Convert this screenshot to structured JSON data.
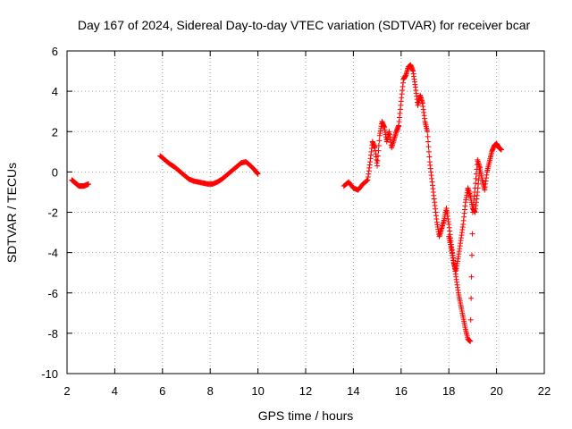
{
  "chart_data": {
    "type": "scatter",
    "title": "Day 167 of 2024, Sidereal Day-to-day VTEC variation (SDTVAR) for receiver bcar",
    "xlabel": "GPS time / hours",
    "ylabel": "SDTVAR / TECUs",
    "xlim": [
      2,
      22
    ],
    "ylim": [
      -10,
      6
    ],
    "xticks": [
      2,
      4,
      6,
      8,
      10,
      12,
      14,
      16,
      18,
      20,
      22
    ],
    "yticks": [
      -10,
      -8,
      -6,
      -4,
      -2,
      0,
      2,
      4,
      6
    ],
    "xtick_labels": [
      "2",
      "4",
      "6",
      "8",
      "10",
      "12",
      "14",
      "16",
      "18",
      "20",
      "22"
    ],
    "ytick_labels": [
      "-10",
      "-8",
      "-6",
      "-4",
      "-2",
      "0",
      "2",
      "4",
      "6"
    ],
    "grid": true,
    "marker": "plus",
    "color": "#ff0000",
    "series": [
      {
        "name": "segment-1",
        "x": [
          2.2,
          2.3,
          2.4,
          2.5,
          2.6,
          2.7,
          2.8,
          2.9
        ],
        "y": [
          -0.4,
          -0.5,
          -0.6,
          -0.7,
          -0.7,
          -0.7,
          -0.65,
          -0.6
        ]
      },
      {
        "name": "segment-2",
        "x": [
          5.9,
          6.1,
          6.3,
          6.5,
          6.7,
          6.9,
          7.1,
          7.3,
          7.5,
          7.7,
          7.9,
          8.1,
          8.3,
          8.5,
          8.7,
          8.9,
          9.1,
          9.3,
          9.5,
          9.7,
          9.9,
          10.0
        ],
        "y": [
          0.8,
          0.6,
          0.4,
          0.25,
          0.05,
          -0.15,
          -0.35,
          -0.45,
          -0.5,
          -0.55,
          -0.6,
          -0.6,
          -0.5,
          -0.35,
          -0.15,
          0.05,
          0.25,
          0.45,
          0.5,
          0.3,
          0.05,
          -0.1
        ]
      },
      {
        "name": "segment-3",
        "x": [
          13.6,
          13.8,
          14.0,
          14.2,
          14.4,
          14.6,
          14.7,
          14.8,
          14.9,
          15.0,
          15.1,
          15.2,
          15.3,
          15.4,
          15.5,
          15.6,
          15.7,
          15.8,
          15.9,
          16.0,
          16.1,
          16.2,
          16.3,
          16.4,
          16.5,
          16.6,
          16.7,
          16.8,
          16.9,
          17.0,
          17.1,
          17.2,
          17.3,
          17.4,
          17.5,
          17.6,
          17.7,
          17.8,
          17.9,
          18.0,
          18.1,
          18.2,
          18.3,
          18.4,
          18.5,
          18.6,
          18.7,
          18.8,
          18.9,
          19.0,
          19.1,
          19.2,
          19.3,
          19.4,
          19.5,
          19.6,
          19.7,
          19.8,
          19.9,
          20.0,
          20.1,
          20.2
        ],
        "y": [
          -0.7,
          -0.5,
          -0.8,
          -0.9,
          -0.6,
          -0.4,
          0.5,
          1.5,
          1.2,
          0.3,
          1.8,
          2.5,
          2.2,
          1.5,
          2.0,
          1.2,
          1.6,
          2.0,
          2.3,
          3.5,
          4.6,
          4.8,
          5.2,
          5.3,
          5.0,
          4.2,
          3.3,
          3.8,
          3.4,
          2.5,
          2.0,
          0.5,
          -0.5,
          -1.5,
          -2.5,
          -3.2,
          -2.8,
          -2.4,
          -1.8,
          -2.6,
          -3.6,
          -4.4,
          -5.2,
          -6.0,
          -6.6,
          -7.2,
          -7.8,
          -8.3,
          -8.4,
          -2.0,
          -0.8,
          0.6,
          0.2,
          -0.4,
          -0.9,
          0.0,
          0.5,
          1.0,
          1.3,
          1.4,
          1.2,
          1.1
        ]
      },
      {
        "name": "segment-3b",
        "x": [
          18.0,
          18.1,
          18.2,
          18.3,
          18.4,
          18.5,
          18.6,
          18.7,
          18.8,
          18.9,
          19.0,
          19.1,
          19.2,
          19.3
        ],
        "y": [
          -3.2,
          -3.8,
          -4.5,
          -4.9,
          -4.2,
          -3.4,
          -2.6,
          -1.5,
          -0.8,
          -1.2,
          -1.8,
          -2.0,
          -1.0,
          0.2
        ]
      }
    ]
  }
}
